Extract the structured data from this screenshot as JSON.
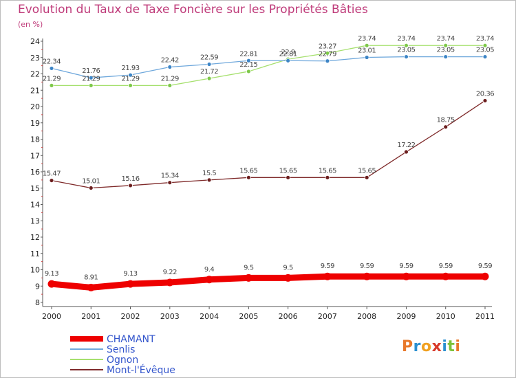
{
  "header": {
    "title": "Evolution du Taux de Taxe Foncière sur les Propriétés Bâties",
    "unit": "(en %)"
  },
  "logo": {
    "text": "Proxiti",
    "colors": [
      "#e8782a",
      "#2a8fd0",
      "#f0a020",
      "#d83a2a",
      "#2a8fd0",
      "#7cc23a",
      "#e8782a"
    ]
  },
  "chart_data": {
    "type": "line",
    "title": "Evolution du Taux de Taxe Foncière sur les Propriétés Bâties",
    "ylabel": "(en %)",
    "xlabel": "",
    "ylim": [
      8,
      24
    ],
    "yticks": [
      8,
      9,
      10,
      11,
      12,
      13,
      14,
      15,
      16,
      17,
      18,
      19,
      20,
      21,
      22,
      23,
      24
    ],
    "x": [
      "2000",
      "2001",
      "2002",
      "2003",
      "2004",
      "2005",
      "2006",
      "2007",
      "2008",
      "2009",
      "2010",
      "2011"
    ],
    "grid": false,
    "legend": "bottom-left",
    "series": [
      {
        "name": "CHAMANT",
        "color": "#ee0000",
        "values": [
          9.13,
          8.91,
          9.13,
          9.22,
          9.4,
          9.5,
          9.5,
          9.59,
          9.59,
          9.59,
          9.59,
          9.59
        ],
        "labels": [
          "9.13",
          "8.91",
          "9.13",
          "9.22",
          "9.4",
          "9.5",
          "9.5",
          "9.59",
          "9.59",
          "9.59",
          "9.59",
          "9.59"
        ]
      },
      {
        "name": "Senlis",
        "color": "#6fa8dc",
        "marker": "#3d85c6",
        "values": [
          22.34,
          21.76,
          21.93,
          22.42,
          22.59,
          22.81,
          22.81,
          22.79,
          23.01,
          23.05,
          23.05,
          23.05
        ],
        "labels": [
          "22.34",
          "21.76",
          "21.93",
          "22.42",
          "22.59",
          "22.81",
          "22.81",
          "22.79",
          "23.01",
          "23.05",
          "23.05",
          "23.05"
        ]
      },
      {
        "name": "Ognon",
        "color": "#a6e06e",
        "marker": "#7ec84a",
        "values": [
          21.29,
          21.29,
          21.29,
          21.29,
          21.72,
          22.15,
          22.9,
          23.27,
          23.74,
          23.74,
          23.74,
          23.74
        ],
        "labels": [
          "21.29",
          "21.29",
          "21.29",
          "21.29",
          "21.72",
          "22.15",
          "22.9",
          "23.27",
          "23.74",
          "23.74",
          "23.74",
          "23.74"
        ]
      },
      {
        "name": "Mont-l'Évêque",
        "color": "#7f2a2a",
        "marker": "#6b1e1e",
        "values": [
          15.47,
          15.01,
          15.16,
          15.34,
          15.5,
          15.65,
          15.65,
          15.65,
          15.65,
          17.22,
          18.75,
          20.36
        ],
        "labels": [
          "15.47",
          "15.01",
          "15.16",
          "15.34",
          "15.5",
          "15.65",
          "15.65",
          "15.65",
          "15.65",
          "17.22",
          "18.75",
          "20.36"
        ]
      }
    ]
  }
}
